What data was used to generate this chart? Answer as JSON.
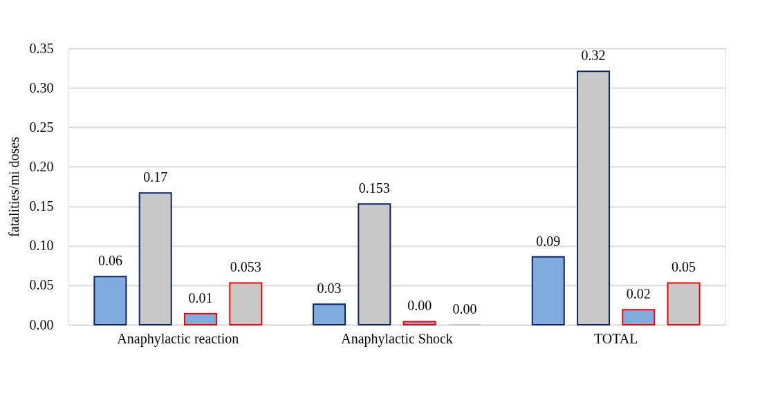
{
  "chart_data": {
    "type": "bar",
    "ylabel": "fatalities/mi doses",
    "categories": [
      "Anaphylactic reaction",
      "Anaphylactic Shock",
      "TOTAL"
    ],
    "series": [
      {
        "color": "#7facdc",
        "values": [
          0.061,
          0.026,
          0.086
        ],
        "value_labels": [
          "0.06",
          "0.03",
          "0.09"
        ]
      },
      {
        "color": "#c8c8c8",
        "values": [
          0.167,
          0.153,
          0.321
        ],
        "value_labels": [
          "0.17",
          "0.153",
          "0.32"
        ]
      },
      {
        "color": "#7facdc",
        "values": [
          0.014,
          0.004,
          0.019
        ],
        "value_labels": [
          "0.01",
          "0.00",
          "0.02"
        ]
      },
      {
        "color": "#c8c8c8",
        "values": [
          0.053,
          0.0,
          0.053
        ],
        "value_labels": [
          "0.053",
          "0.00",
          "0.05"
        ]
      }
    ],
    "ylim": [
      0,
      0.35
    ],
    "yticks": [
      {
        "value": 0,
        "label": "0.00"
      },
      0.05,
      {
        "value": 0.1,
        "label": "0.10"
      },
      0.15,
      {
        "value": 0.2,
        "label": "0.20"
      },
      0.25,
      {
        "value": 0.3,
        "label": "0.30"
      },
      0.35
    ],
    "grid": "y",
    "legend": false
  }
}
